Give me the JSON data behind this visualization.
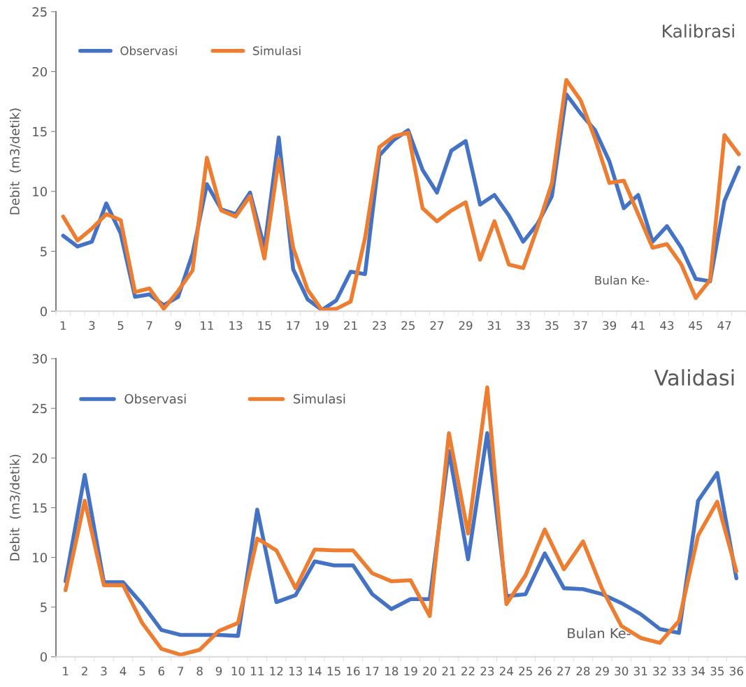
{
  "chart_data": [
    {
      "type": "line",
      "title": "Kalibrasi",
      "xlabel": "Bulan Ke-",
      "ylabel": "Debit  (m3/detik)",
      "categories": [
        "1",
        null,
        "3",
        null,
        "5",
        null,
        "7",
        null,
        "9",
        null,
        "11",
        null,
        "13",
        null,
        "15",
        null,
        "17",
        null,
        "19",
        null,
        "21",
        null,
        "23",
        null,
        "25",
        null,
        "27",
        null,
        "29",
        null,
        "31",
        null,
        "33",
        null,
        "35",
        null,
        "37",
        null,
        "39",
        null,
        "41",
        null,
        "43",
        null,
        "45",
        null,
        "47",
        null
      ],
      "series": [
        {
          "name": "Observasi",
          "color": "#4472c4",
          "values": [
            6.3,
            5.4,
            5.8,
            9.0,
            6.5,
            1.2,
            1.4,
            0.5,
            1.2,
            4.8,
            10.6,
            8.5,
            8.1,
            9.9,
            5.3,
            14.5,
            3.5,
            1.0,
            0.1,
            0.9,
            3.3,
            3.1,
            13.0,
            14.3,
            15.1,
            11.8,
            9.9,
            13.4,
            14.2,
            8.9,
            9.7,
            8.0,
            5.8,
            7.3,
            9.6,
            18.1,
            16.5,
            15.1,
            12.5,
            8.6,
            9.7,
            5.8,
            7.1,
            5.3,
            2.7,
            2.5,
            9.2,
            12.0
          ]
        },
        {
          "name": "Simulasi",
          "color": "#ed7d31",
          "values": [
            7.9,
            5.9,
            6.9,
            8.1,
            7.6,
            1.6,
            1.9,
            0.2,
            1.7,
            3.4,
            12.8,
            8.4,
            7.9,
            9.6,
            4.4,
            12.7,
            5.3,
            1.8,
            0.1,
            0.2,
            0.8,
            6.1,
            13.7,
            14.6,
            14.9,
            8.6,
            7.5,
            8.4,
            9.1,
            4.3,
            7.5,
            3.9,
            3.6,
            7.0,
            10.7,
            19.3,
            17.6,
            14.4,
            10.7,
            10.9,
            8.1,
            5.3,
            5.6,
            3.9,
            1.1,
            2.6,
            14.7,
            13.1
          ]
        }
      ],
      "ylim": [
        0,
        25
      ],
      "yticks": [
        0,
        5,
        10,
        15,
        20,
        25
      ],
      "legend": "top left",
      "grid": false
    },
    {
      "type": "line",
      "title": "Validasi",
      "xlabel": "Bulan Ke-",
      "ylabel": "Debit  (m3/detik)",
      "categories": [
        "1",
        "2",
        "3",
        "4",
        "5",
        "6",
        "7",
        "8",
        "9",
        "10",
        "11",
        "12",
        "13",
        "14",
        "15",
        "16",
        "17",
        "18",
        "19",
        "20",
        "21",
        "22",
        "23",
        "24",
        "25",
        "26",
        "27",
        "28",
        "29",
        "30",
        "31",
        "32",
        "33",
        "34",
        "35",
        "36"
      ],
      "series": [
        {
          "name": "Observasi",
          "color": "#4472c4",
          "values": [
            7.6,
            18.3,
            7.5,
            7.5,
            5.3,
            2.7,
            2.2,
            2.2,
            2.2,
            2.1,
            14.8,
            5.5,
            6.2,
            9.6,
            9.2,
            9.2,
            6.3,
            4.8,
            5.8,
            5.8,
            20.7,
            9.8,
            22.5,
            6.1,
            6.3,
            10.4,
            6.9,
            6.8,
            6.3,
            5.4,
            4.3,
            2.8,
            2.4,
            15.7,
            18.5,
            7.9
          ]
        },
        {
          "name": "Simulasi",
          "color": "#ed7d31",
          "values": [
            6.7,
            15.7,
            7.2,
            7.2,
            3.4,
            0.8,
            0.2,
            0.7,
            2.6,
            3.4,
            11.9,
            10.7,
            6.9,
            10.8,
            10.7,
            10.7,
            8.4,
            7.6,
            7.7,
            4.1,
            22.5,
            12.4,
            27.1,
            5.3,
            8.2,
            12.8,
            8.8,
            11.6,
            6.8,
            3.1,
            1.9,
            1.4,
            3.6,
            12.2,
            15.6,
            8.6
          ]
        }
      ],
      "ylim": [
        0,
        30
      ],
      "yticks": [
        0,
        5,
        10,
        15,
        20,
        25,
        30
      ],
      "legend": "top left",
      "grid": false
    }
  ]
}
